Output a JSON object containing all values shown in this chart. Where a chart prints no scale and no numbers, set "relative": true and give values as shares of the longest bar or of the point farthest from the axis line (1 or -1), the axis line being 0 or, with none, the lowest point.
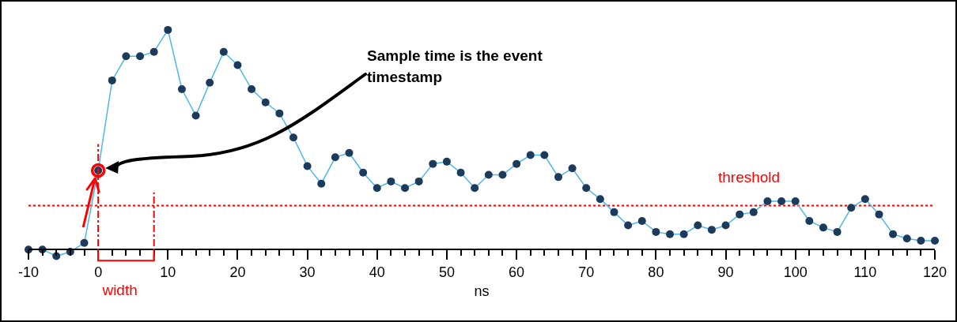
{
  "chart_data": {
    "type": "line",
    "relative": true,
    "xlabel": "ns",
    "x": [
      -10,
      -8,
      -6,
      -4,
      -2,
      0,
      2,
      4,
      6,
      8,
      10,
      12,
      14,
      16,
      18,
      20,
      22,
      24,
      26,
      28,
      30,
      32,
      34,
      36,
      38,
      40,
      42,
      44,
      46,
      48,
      50,
      52,
      54,
      56,
      58,
      60,
      62,
      64,
      66,
      68,
      70,
      72,
      74,
      76,
      78,
      80,
      82,
      84,
      86,
      88,
      90,
      92,
      94,
      96,
      98,
      100,
      102,
      104,
      106,
      108,
      110,
      112,
      114,
      116,
      118,
      120
    ],
    "series": [
      {
        "color": "#1b3a5c",
        "values": [
          0,
          0,
          -0.03,
          -0.01,
          0.03,
          0.36,
          0.77,
          0.88,
          0.88,
          0.9,
          1,
          0.73,
          0.61,
          0.76,
          0.9,
          0.84,
          0.73,
          0.67,
          0.62,
          0.51,
          0.38,
          0.3,
          0.42,
          0.44,
          0.35,
          0.28,
          0.31,
          0.28,
          0.31,
          0.39,
          0.4,
          0.35,
          0.28,
          0.34,
          0.34,
          0.39,
          0.43,
          0.43,
          0.33,
          0.37,
          0.28,
          0.23,
          0.17,
          0.11,
          0.13,
          0.08,
          0.07,
          0.07,
          0.11,
          0.09,
          0.11,
          0.16,
          0.17,
          0.22,
          0.22,
          0.22,
          0.13,
          0.1,
          0.08,
          0.19,
          0.23,
          0.16,
          0.07,
          0.05,
          0.04,
          0.04
        ]
      }
    ],
    "marker": "circle",
    "line_style": "solid",
    "xlim": [
      -10,
      120
    ],
    "xticks": [
      -10,
      0,
      10,
      20,
      30,
      40,
      50,
      60,
      70,
      80,
      90,
      100,
      110,
      120
    ],
    "grid": false,
    "ref_lines": [
      {
        "axis": "y",
        "value": 0.2,
        "label": "threshold",
        "color": "#ff0000",
        "line_style": "dotted"
      },
      {
        "axis": "x",
        "value": 0,
        "color": "#ff0000",
        "line_style": "dashed"
      },
      {
        "axis": "x",
        "value": 8,
        "color": "#ff0000",
        "line_style": "dashed"
      }
    ],
    "annotations": [
      "Sample time is the event timestamp",
      "width"
    ]
  }
}
